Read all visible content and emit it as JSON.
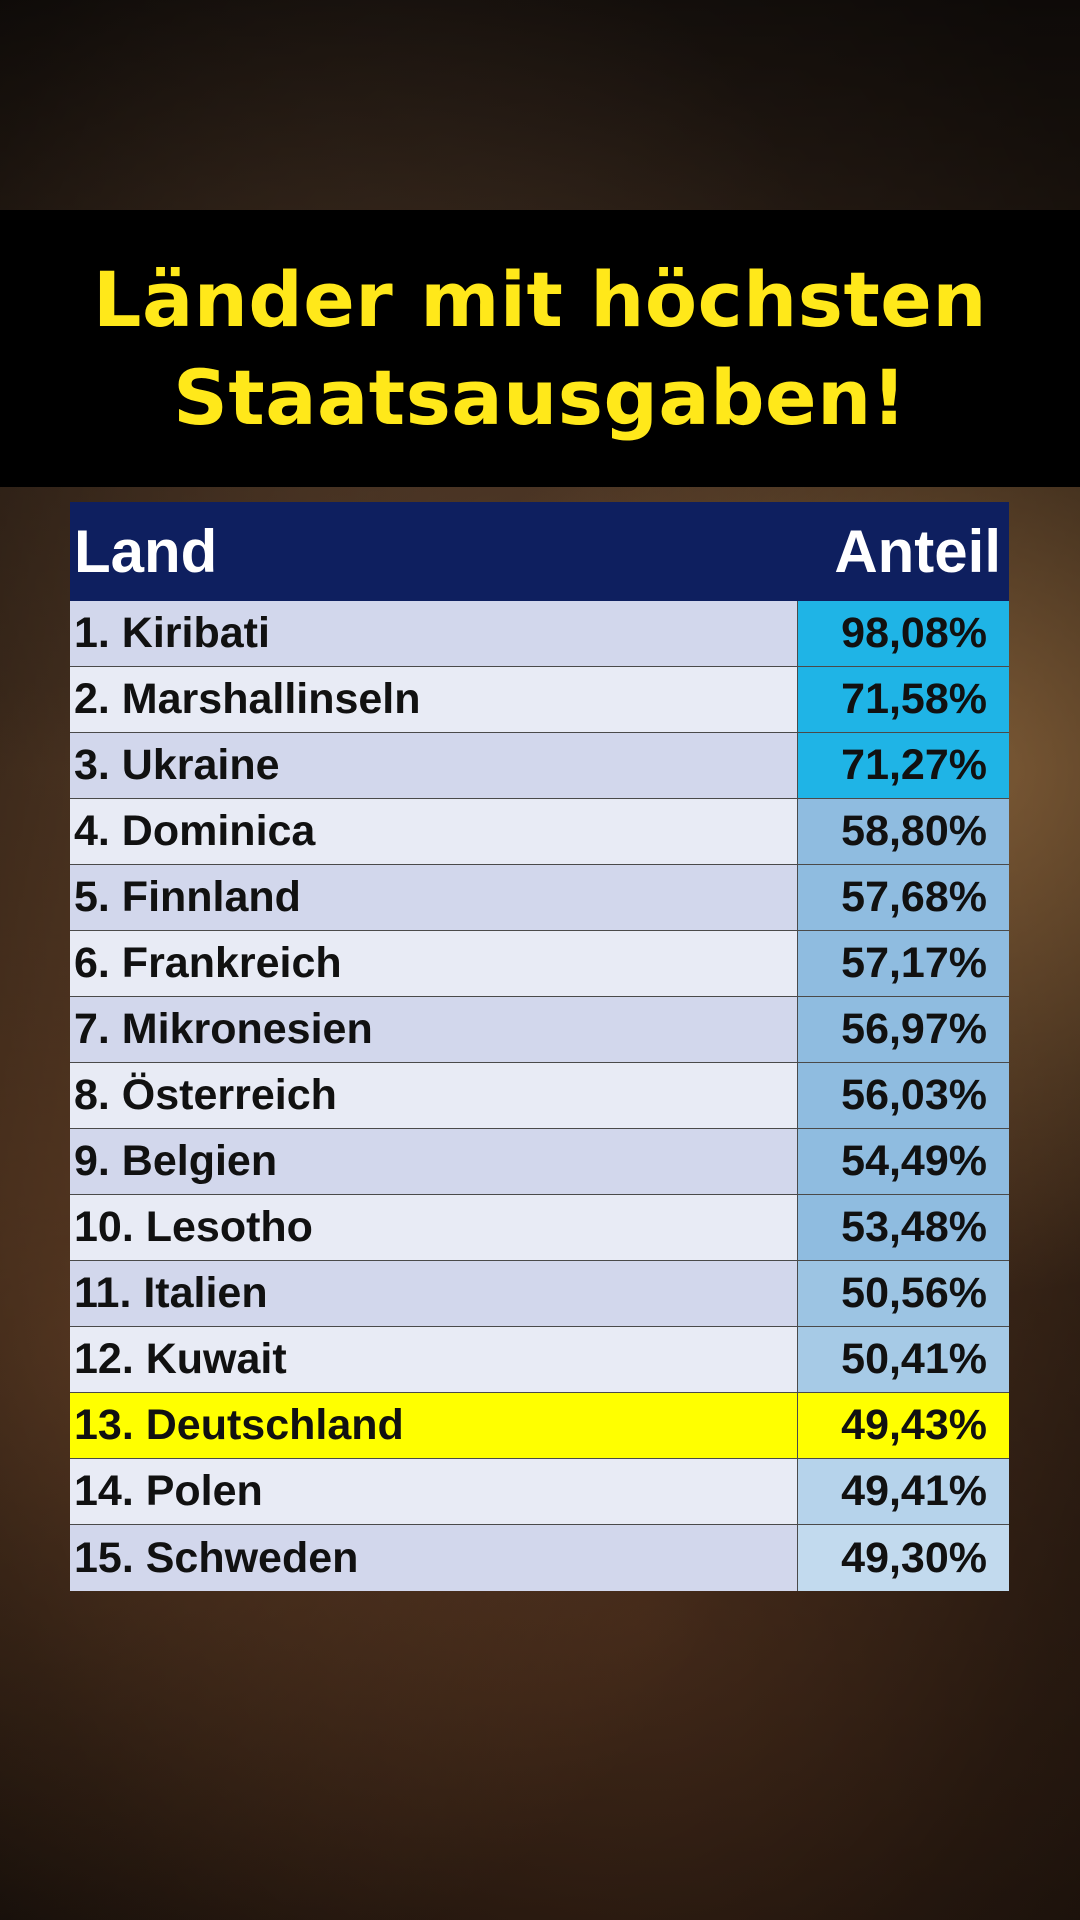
{
  "title": {
    "line1": "Länder mit höchsten",
    "line2": "Staatsausgaben!"
  },
  "table": {
    "headers": {
      "land": "Land",
      "anteil": "Anteil"
    },
    "rows": [
      {
        "land": "1. Kiribati",
        "anteil": "98,08%"
      },
      {
        "land": "2. Marshallinseln",
        "anteil": "71,58%"
      },
      {
        "land": "3. Ukraine",
        "anteil": "71,27%"
      },
      {
        "land": "4. Dominica",
        "anteil": "58,80%"
      },
      {
        "land": "5. Finnland",
        "anteil": "57,68%"
      },
      {
        "land": "6. Frankreich",
        "anteil": "57,17%"
      },
      {
        "land": "7. Mikronesien",
        "anteil": "56,97%"
      },
      {
        "land": "8. Österreich",
        "anteil": "56,03%"
      },
      {
        "land": "9. Belgien",
        "anteil": "54,49%"
      },
      {
        "land": "10. Lesotho",
        "anteil": "53,48%"
      },
      {
        "land": "11. Italien",
        "anteil": "50,56%"
      },
      {
        "land": "12. Kuwait",
        "anteil": "50,41%"
      },
      {
        "land": "13. Deutschland",
        "anteil": "49,43%"
      },
      {
        "land": "14. Polen",
        "anteil": "49,41%"
      },
      {
        "land": "15. Schweden",
        "anteil": "49,30%"
      }
    ],
    "value_colors": [
      "#1FB4E6",
      "#1FB4E6",
      "#1FB4E6",
      "#8FBCE0",
      "#8FBCE0",
      "#8FBCE0",
      "#8FBCE0",
      "#8FBCE0",
      "#8FBCE0",
      "#8FBCE0",
      "#9CC4E3",
      "#A6CAE6",
      "#FFFF00",
      "#B6D3EB",
      "#C2DAEE"
    ],
    "highlight_row": 13,
    "header_color": "#0E1F5F",
    "title_color": "#FFE81A"
  }
}
